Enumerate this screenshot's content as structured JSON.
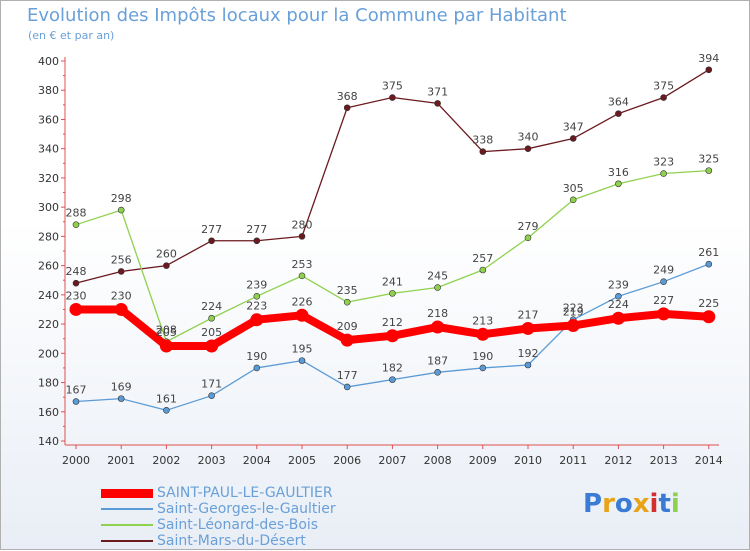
{
  "title": "Evolution des Impôts locaux pour la Commune par Habitant",
  "subtitle": "(en € et par an)",
  "logo": "Proxiti",
  "chart_data": {
    "type": "line",
    "title": "Evolution des Impôts locaux pour la Commune par Habitant",
    "subtitle": "(en € et par an)",
    "xlabel": "",
    "ylabel": "",
    "ylim": [
      140,
      400
    ],
    "ystep": 20,
    "grid": false,
    "legend_position": "bottom-left",
    "categories": [
      "2000",
      "2001",
      "2002",
      "2003",
      "2004",
      "2005",
      "2006",
      "2007",
      "2008",
      "2009",
      "2010",
      "2011",
      "2012",
      "2013",
      "2014"
    ],
    "series": [
      {
        "name": "SAINT-PAUL-LE-GAULTIER",
        "color": "#ff0000",
        "values": [
          230,
          230,
          205,
          205,
          223,
          226,
          209,
          212,
          218,
          213,
          217,
          219,
          224,
          227,
          225
        ]
      },
      {
        "name": "Saint-Georges-le-Gaultier",
        "color": "#5b9bd5",
        "values": [
          167,
          169,
          161,
          171,
          190,
          195,
          177,
          182,
          187,
          190,
          192,
          223,
          239,
          249,
          261
        ]
      },
      {
        "name": "Saint-Léonard-des-Bois",
        "color": "#8fd14f",
        "values": [
          288,
          298,
          208,
          224,
          239,
          253,
          235,
          241,
          245,
          257,
          279,
          305,
          316,
          323,
          325
        ]
      },
      {
        "name": "Saint-Mars-du-Désert",
        "color": "#6b1a1f",
        "values": [
          248,
          256,
          260,
          277,
          277,
          280,
          368,
          375,
          371,
          338,
          340,
          347,
          364,
          375,
          394
        ]
      }
    ]
  }
}
